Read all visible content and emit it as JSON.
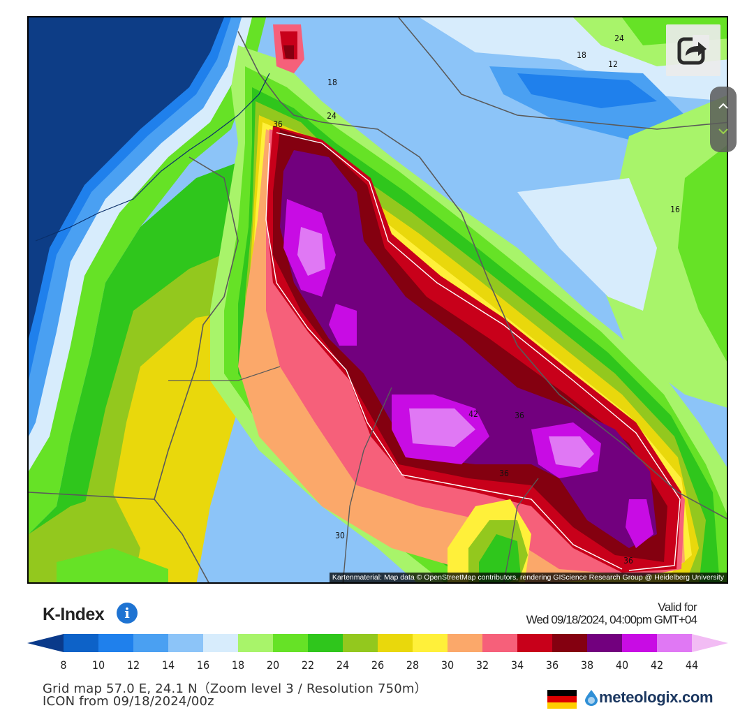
{
  "map": {
    "attribution": "Kartenmaterial: Map data © OpenStreetMap contributors, rendering GIScience Research Group @ Heidelberg University",
    "contour_labels": [
      "18",
      "24",
      "12",
      "18",
      "24",
      "36",
      "16",
      "42",
      "36",
      "36",
      "30",
      "36"
    ]
  },
  "controls": {
    "share_icon": "share-icon",
    "zoom_in_icon": "chevron-up-icon",
    "zoom_out_icon": "chevron-down-icon"
  },
  "legend": {
    "title": "K-Index",
    "info_icon": "i",
    "valid_label": "Valid for",
    "valid_time": "Wed 09/18/2024, 04:00pm GMT+04",
    "ticks": [
      "8",
      "10",
      "12",
      "14",
      "16",
      "18",
      "20",
      "22",
      "24",
      "26",
      "28",
      "30",
      "32",
      "34",
      "36",
      "38",
      "40",
      "42",
      "44"
    ],
    "colors": [
      "#0a3a8a",
      "#0d62c8",
      "#1f80ec",
      "#4aa0f2",
      "#8cc4f8",
      "#d7ecfc",
      "#a8f46a",
      "#66e226",
      "#2fc61c",
      "#93c81e",
      "#e9d80c",
      "#fff03a",
      "#fba86a",
      "#f6607a",
      "#c8001a",
      "#840010",
      "#72007e",
      "#c80ce4",
      "#e078f4",
      "#f2bcf4"
    ]
  },
  "footer": {
    "grid_info": "Grid map 57.0 E, 24.1 N（Zoom level 3 / Resolution 750m）",
    "model_info": "ICON from 09/18/2024/00z",
    "brand": "meteologix.com"
  }
}
